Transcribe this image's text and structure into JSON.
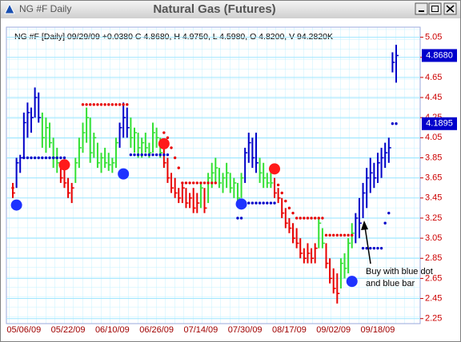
{
  "chart_data": {
    "type": "ohlc",
    "window_title": "NG #F Daily",
    "title": "Natural Gas (Futures)",
    "subtitle": "NG #F [Daily] 09/29/09 +0.0380 C 4.8680, H 4.9750, L 4.5980, O 4.8200, V 94.2820K",
    "annotation": [
      "Buy with blue dot",
      "and blue bar"
    ],
    "categories": [
      null,
      null,
      null,
      "05/06/09",
      null,
      null,
      null,
      null,
      null,
      null,
      null,
      null,
      null,
      null,
      null,
      "05/22/09",
      null,
      null,
      null,
      null,
      null,
      null,
      null,
      null,
      null,
      null,
      null,
      "06/10/09",
      null,
      null,
      null,
      null,
      null,
      null,
      null,
      null,
      null,
      null,
      null,
      "06/26/09",
      null,
      null,
      null,
      null,
      null,
      null,
      null,
      null,
      null,
      null,
      null,
      "07/14/09",
      null,
      null,
      null,
      null,
      null,
      null,
      null,
      null,
      null,
      null,
      null,
      "07/30/09",
      null,
      null,
      null,
      null,
      null,
      null,
      null,
      null,
      null,
      null,
      null,
      "08/17/09",
      null,
      null,
      null,
      null,
      null,
      null,
      null,
      null,
      null,
      null,
      null,
      "09/02/09",
      null,
      null,
      null,
      null,
      null,
      null,
      null,
      null,
      null,
      null,
      null,
      "09/18/09",
      null,
      null,
      null,
      null,
      null
    ],
    "high": [
      3.6,
      3.85,
      3.88,
      4.3,
      4.4,
      4.35,
      4.55,
      4.5,
      4.3,
      4.25,
      4.2,
      4.05,
      3.95,
      3.8,
      3.75,
      3.65,
      3.6,
      3.85,
      4.05,
      4.2,
      4.35,
      4.25,
      4.1,
      4.0,
      3.9,
      3.95,
      3.9,
      3.85,
      4.05,
      4.2,
      4.4,
      4.35,
      4.25,
      4.15,
      4.1,
      4.05,
      4.1,
      4.0,
      4.2,
      4.15,
      4.05,
      3.95,
      3.85,
      3.7,
      3.65,
      3.55,
      3.6,
      3.55,
      3.5,
      3.55,
      3.5,
      3.6,
      3.55,
      3.7,
      3.8,
      3.85,
      3.75,
      3.7,
      3.8,
      3.7,
      3.65,
      3.6,
      3.7,
      3.95,
      4.1,
      4.05,
      4.1,
      3.85,
      3.8,
      3.7,
      3.75,
      3.65,
      3.55,
      3.45,
      3.35,
      3.25,
      3.2,
      3.15,
      3.05,
      2.95,
      3.0,
      2.95,
      3.0,
      3.25,
      3.15,
      3.0,
      2.85,
      2.75,
      2.7,
      2.85,
      2.9,
      3.05,
      3.2,
      3.3,
      3.45,
      3.6,
      3.75,
      3.85,
      3.8,
      3.9,
      3.95,
      4.0,
      4.05,
      4.9,
      4.975
    ],
    "low": [
      3.45,
      3.55,
      3.7,
      3.85,
      4.05,
      4.1,
      4.25,
      4.2,
      3.95,
      3.9,
      3.95,
      3.75,
      3.7,
      3.6,
      3.55,
      3.45,
      3.4,
      3.6,
      3.75,
      3.9,
      4.0,
      3.8,
      3.85,
      3.75,
      3.7,
      3.75,
      3.72,
      3.7,
      3.75,
      3.95,
      4.05,
      4.05,
      3.95,
      3.9,
      3.85,
      3.85,
      3.9,
      3.85,
      3.9,
      3.95,
      3.85,
      3.75,
      3.6,
      3.5,
      3.45,
      3.4,
      3.4,
      3.35,
      3.35,
      3.3,
      3.3,
      3.35,
      3.3,
      3.4,
      3.55,
      3.6,
      3.55,
      3.5,
      3.55,
      3.5,
      3.45,
      3.4,
      3.45,
      3.6,
      3.8,
      3.75,
      3.7,
      3.6,
      3.55,
      3.55,
      3.55,
      3.45,
      3.4,
      3.25,
      3.15,
      3.1,
      3.0,
      2.95,
      2.85,
      2.8,
      2.8,
      2.8,
      2.8,
      2.95,
      2.95,
      2.75,
      2.6,
      2.5,
      2.4,
      2.55,
      2.65,
      2.7,
      2.95,
      3.0,
      3.05,
      3.25,
      3.35,
      3.5,
      3.55,
      3.6,
      3.65,
      3.75,
      3.8,
      4.7,
      4.598
    ],
    "close": [
      3.5,
      3.8,
      3.85,
      4.2,
      4.3,
      4.25,
      4.45,
      4.25,
      4.05,
      4.15,
      4.0,
      3.85,
      3.8,
      3.65,
      3.6,
      3.5,
      3.55,
      3.8,
      3.95,
      4.1,
      4.25,
      3.9,
      4.05,
      3.8,
      3.85,
      3.8,
      3.78,
      3.8,
      4.0,
      4.15,
      4.25,
      4.15,
      4.05,
      4.1,
      3.95,
      4.0,
      3.95,
      3.9,
      4.1,
      4.05,
      3.9,
      3.8,
      3.65,
      3.55,
      3.5,
      3.45,
      3.55,
      3.4,
      3.45,
      3.35,
      3.4,
      3.55,
      3.35,
      3.65,
      3.7,
      3.75,
      3.6,
      3.65,
      3.7,
      3.55,
      3.6,
      3.45,
      3.65,
      3.9,
      4.0,
      3.85,
      3.8,
      3.7,
      3.65,
      3.6,
      3.6,
      3.5,
      3.45,
      3.3,
      3.2,
      3.15,
      3.05,
      3.0,
      2.9,
      2.85,
      2.9,
      2.85,
      2.95,
      3.2,
      3.0,
      2.8,
      2.65,
      2.55,
      2.5,
      2.8,
      2.75,
      3.0,
      3.1,
      3.25,
      3.2,
      3.5,
      3.65,
      3.7,
      3.65,
      3.8,
      3.85,
      3.9,
      3.95,
      4.8,
      4.868
    ],
    "palette": {
      "red": "#e80000",
      "green": "#33e033",
      "blue": "#0000c8"
    },
    "bar_colors": [
      "red",
      "blue",
      "blue",
      "blue",
      "blue",
      "blue",
      "blue",
      "blue",
      "green",
      "green",
      "green",
      "green",
      "green",
      "red",
      "red",
      "red",
      "red",
      "green",
      "green",
      "green",
      "green",
      "green",
      "green",
      "green",
      "green",
      "green",
      "green",
      "green",
      "green",
      "blue",
      "blue",
      "blue",
      "green",
      "green",
      "green",
      "green",
      "green",
      "green",
      "green",
      "green",
      "green",
      "red",
      "red",
      "red",
      "red",
      "red",
      "red",
      "red",
      "red",
      "red",
      "red",
      "green",
      "red",
      "green",
      "green",
      "green",
      "green",
      "green",
      "green",
      "green",
      "green",
      "green",
      "green",
      "blue",
      "blue",
      "blue",
      "blue",
      "green",
      "green",
      "green",
      "green",
      "red",
      "red",
      "red",
      "red",
      "red",
      "red",
      "red",
      "red",
      "red",
      "red",
      "red",
      "red",
      "green",
      "green",
      "red",
      "red",
      "red",
      "red",
      "green",
      "green",
      "green",
      "green",
      "blue",
      "blue",
      "blue",
      "blue",
      "blue",
      "blue",
      "blue",
      "blue",
      "blue",
      "blue",
      "blue",
      "blue"
    ],
    "stop_dots": [
      {
        "color": "red",
        "values": [
          3.55,
          null,
          null,
          null,
          null,
          null,
          null,
          null,
          null,
          null,
          null,
          null,
          null,
          null,
          null,
          null,
          null,
          null,
          null,
          4.38,
          4.38,
          4.38,
          4.38,
          4.38,
          4.38,
          4.38,
          4.38,
          4.38,
          4.38,
          4.38,
          4.38,
          4.38,
          null,
          null,
          null,
          null,
          null,
          null,
          null,
          null,
          null,
          4.1,
          4.05,
          3.95,
          3.85,
          3.75,
          3.6,
          3.6,
          3.6,
          3.6,
          3.6,
          3.6,
          3.6,
          3.6,
          3.6,
          3.6,
          null,
          null,
          null,
          null,
          null,
          null,
          null,
          null,
          null,
          null,
          null,
          null,
          null,
          null,
          null,
          null,
          3.58,
          3.5,
          3.42,
          3.35,
          3.3,
          3.25,
          3.25,
          3.25,
          3.25,
          3.25,
          3.25,
          3.25,
          3.25,
          3.08,
          3.08,
          3.08,
          3.08,
          3.08,
          3.08,
          3.08,
          3.08,
          null,
          null,
          null,
          null,
          null,
          null,
          null,
          null,
          null,
          null,
          null,
          null
        ]
      },
      {
        "color": "blue",
        "values": [
          null,
          null,
          null,
          3.85,
          3.85,
          3.85,
          3.85,
          3.85,
          3.85,
          3.85,
          3.85,
          3.85,
          3.85,
          3.85,
          3.85,
          null,
          null,
          null,
          null,
          null,
          null,
          null,
          null,
          null,
          null,
          null,
          null,
          null,
          null,
          null,
          null,
          null,
          3.88,
          3.88,
          3.88,
          3.88,
          3.88,
          3.88,
          3.88,
          3.88,
          3.88,
          3.88,
          3.88,
          null,
          null,
          null,
          null,
          null,
          null,
          null,
          null,
          null,
          null,
          null,
          null,
          null,
          null,
          null,
          null,
          null,
          null,
          3.25,
          3.25,
          3.4,
          3.4,
          3.4,
          3.4,
          3.4,
          3.4,
          3.4,
          3.4,
          3.4,
          null,
          null,
          null,
          null,
          null,
          null,
          null,
          null,
          null,
          null,
          null,
          null,
          null,
          null,
          null,
          null,
          null,
          null,
          null,
          null,
          null,
          null,
          null,
          2.95,
          2.95,
          2.95,
          2.95,
          2.95,
          2.95,
          3.2,
          3.3,
          4.19,
          4.19
        ]
      }
    ],
    "signals": [
      {
        "x": 1,
        "value": 3.38,
        "color": "blue"
      },
      {
        "x": 14,
        "value": 3.78,
        "color": "red"
      },
      {
        "x": 30,
        "value": 3.69,
        "color": "blue"
      },
      {
        "x": 41,
        "value": 3.99,
        "color": "red"
      },
      {
        "x": 62,
        "value": 3.39,
        "color": "blue"
      },
      {
        "x": 71,
        "value": 3.74,
        "color": "red"
      },
      {
        "x": 92,
        "value": 2.62,
        "color": "blue"
      }
    ],
    "price_labels": [
      {
        "value": 4.868,
        "label": "4.8680"
      },
      {
        "value": 4.1895,
        "label": "4.1895"
      }
    ],
    "ylim": [
      2.2,
      5.15
    ],
    "yticks": [
      2.25,
      2.45,
      2.65,
      2.85,
      3.05,
      3.25,
      3.45,
      3.65,
      3.85,
      4.05,
      4.25,
      4.45,
      4.65,
      4.85,
      5.05
    ],
    "grid": true
  }
}
